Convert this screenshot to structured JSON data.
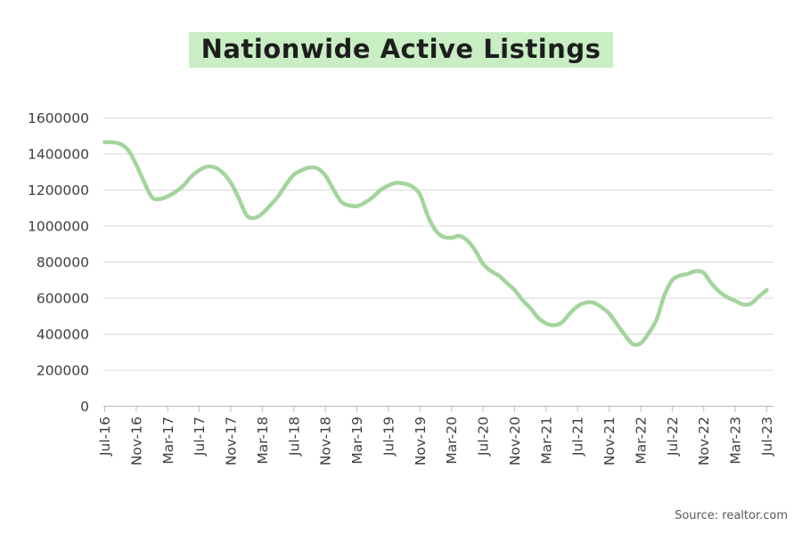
{
  "title": {
    "text": "Nationwide Active Listings"
  },
  "source": {
    "text": "Source: realtor.com"
  },
  "colors": {
    "line": "#a3d59d",
    "title_highlight": "#c9eec4",
    "title_text": "#1d1d1d",
    "gridline": "#dadada",
    "axis_line": "#c0c0c0",
    "axis_label": "#3f3f3f",
    "source_text": "#595959",
    "background": "#ffffff"
  },
  "chart_data": {
    "type": "line",
    "title": "Nationwide Active Listings",
    "xlabel": "",
    "ylabel": "",
    "legend": "none",
    "grid": "horizontal",
    "ylim": [
      0,
      1600000
    ],
    "y_tick_step": 200000,
    "y_tick_labels": [
      "0",
      "200000",
      "400000",
      "600000",
      "800000",
      "1000000",
      "1200000",
      "1400000",
      "1600000"
    ],
    "x_tick_every": 4,
    "x_tick_labels": [
      "Jul-16",
      "Nov-16",
      "Mar-17",
      "Jul-17",
      "Nov-17",
      "Mar-18",
      "Jul-18",
      "Nov-18",
      "Mar-19",
      "Jul-19",
      "Nov-19",
      "Mar-20",
      "Jul-20",
      "Nov-20",
      "Mar-21",
      "Jul-21",
      "Nov-21",
      "Mar-22",
      "Jul-22",
      "Nov-22",
      "Mar-23",
      "Jul-23"
    ],
    "months": [
      "Jul-16",
      "Aug-16",
      "Sep-16",
      "Oct-16",
      "Nov-16",
      "Dec-16",
      "Jan-17",
      "Feb-17",
      "Mar-17",
      "Apr-17",
      "May-17",
      "Jun-17",
      "Jul-17",
      "Aug-17",
      "Sep-17",
      "Oct-17",
      "Nov-17",
      "Dec-17",
      "Jan-18",
      "Feb-18",
      "Mar-18",
      "Apr-18",
      "May-18",
      "Jun-18",
      "Jul-18",
      "Aug-18",
      "Sep-18",
      "Oct-18",
      "Nov-18",
      "Dec-18",
      "Jan-19",
      "Feb-19",
      "Mar-19",
      "Apr-19",
      "May-19",
      "Jun-19",
      "Jul-19",
      "Aug-19",
      "Sep-19",
      "Oct-19",
      "Nov-19",
      "Dec-19",
      "Jan-20",
      "Feb-20",
      "Mar-20",
      "Apr-20",
      "May-20",
      "Jun-20",
      "Jul-20",
      "Aug-20",
      "Sep-20",
      "Oct-20",
      "Nov-20",
      "Dec-20",
      "Jan-21",
      "Feb-21",
      "Mar-21",
      "Apr-21",
      "May-21",
      "Jun-21",
      "Jul-21",
      "Aug-21",
      "Sep-21",
      "Oct-21",
      "Nov-21",
      "Dec-21",
      "Jan-22",
      "Feb-22",
      "Mar-22",
      "Apr-22",
      "May-22",
      "Jun-22",
      "Jul-22",
      "Aug-22",
      "Sep-22",
      "Oct-22",
      "Nov-22",
      "Dec-22",
      "Jan-23",
      "Feb-23",
      "Mar-23",
      "Apr-23",
      "May-23",
      "Jun-23",
      "Jul-23"
    ],
    "values": [
      1465000,
      1465000,
      1455000,
      1420000,
      1340000,
      1245000,
      1160000,
      1150000,
      1165000,
      1190000,
      1225000,
      1275000,
      1310000,
      1330000,
      1325000,
      1295000,
      1240000,
      1155000,
      1060000,
      1045000,
      1070000,
      1115000,
      1165000,
      1230000,
      1285000,
      1310000,
      1325000,
      1320000,
      1280000,
      1205000,
      1135000,
      1115000,
      1110000,
      1130000,
      1160000,
      1200000,
      1225000,
      1240000,
      1235000,
      1220000,
      1175000,
      1055000,
      975000,
      940000,
      935000,
      945000,
      920000,
      865000,
      790000,
      750000,
      725000,
      685000,
      645000,
      590000,
      545000,
      490000,
      460000,
      450000,
      465000,
      515000,
      555000,
      575000,
      575000,
      550000,
      515000,
      455000,
      395000,
      345000,
      350000,
      405000,
      480000,
      615000,
      700000,
      725000,
      735000,
      750000,
      740000,
      680000,
      635000,
      605000,
      585000,
      565000,
      570000,
      610000,
      645000
    ]
  }
}
